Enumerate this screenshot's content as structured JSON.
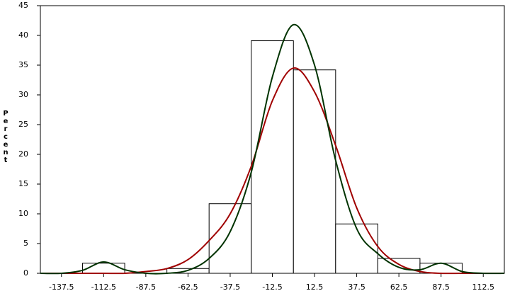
{
  "chart_data": {
    "type": "histogram",
    "ylabel": "Percent",
    "bins": [
      -150,
      -125,
      -100,
      -75,
      -50,
      -25,
      0,
      25,
      50,
      75,
      100,
      125
    ],
    "values": [
      0,
      1.7,
      0,
      0.8,
      11.7,
      39.1,
      34.2,
      8.3,
      2.5,
      1.7,
      0
    ],
    "color": "#ffffff",
    "series": [
      {
        "color": "#a00000",
        "x": [
          -150,
          -137.5,
          -125,
          -112.5,
          -100,
          -87.5,
          -75,
          -62.5,
          -50,
          -37.5,
          -25,
          -12.5,
          0,
          12.5,
          25,
          37.5,
          50,
          62.5,
          75,
          87.5,
          100,
          112.5,
          125
        ],
        "values": [
          0,
          0,
          0,
          0,
          0,
          0.3,
          0.8,
          2.3,
          5.5,
          10,
          18,
          29,
          34.5,
          30.5,
          21.5,
          11,
          4.5,
          1.5,
          0.3,
          0,
          0,
          0,
          0
        ]
      },
      {
        "color": "#003300",
        "x": [
          -150,
          -137.5,
          -125,
          -112.5,
          -100,
          -87.5,
          -75,
          -62.5,
          -50,
          -37.5,
          -25,
          -12.5,
          0,
          12.5,
          25,
          37.5,
          50,
          62.5,
          75,
          87.5,
          100,
          112.5,
          125
        ],
        "values": [
          0,
          0,
          0.5,
          1.9,
          0.6,
          0,
          0,
          0.5,
          2.5,
          7,
          17,
          33,
          41.8,
          35,
          19,
          7.5,
          3.3,
          1.0,
          0.6,
          1.7,
          0.3,
          0,
          0
        ]
      }
    ],
    "xlim": [
      -150,
      125
    ],
    "xticks": [
      -137.5,
      -112.5,
      -87.5,
      -62.5,
      -37.5,
      -12.5,
      12.5,
      37.5,
      62.5,
      87.5,
      112.5
    ],
    "ylim": [
      0,
      45
    ],
    "yticks": [
      0,
      5,
      10,
      15,
      20,
      25,
      30,
      35,
      40,
      45
    ]
  }
}
